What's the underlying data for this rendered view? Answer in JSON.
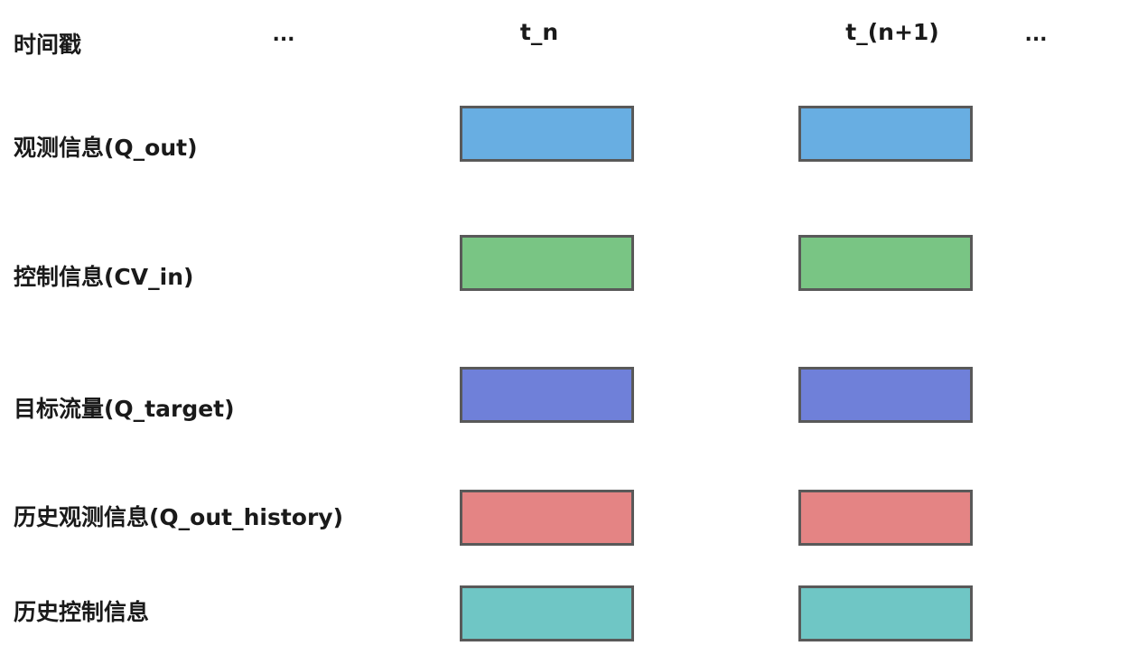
{
  "header": {
    "timestamp_label": "时间戳",
    "ellipsis_left": "...",
    "columns": [
      "t_n",
      "t_(n+1)"
    ],
    "ellipsis_right": "..."
  },
  "rows": [
    {
      "label": "观测信息(Q_out)",
      "color": "#68aee2"
    },
    {
      "label": "控制信息(CV_in)",
      "color": "#79c584"
    },
    {
      "label": "目标流量(Q_target)",
      "color": "#6f80d9"
    },
    {
      "label": "历史观测信息(Q_out_history)",
      "color": "#e48484"
    },
    {
      "label": "历史控制信息",
      "color": "#6fc6c5"
    }
  ]
}
